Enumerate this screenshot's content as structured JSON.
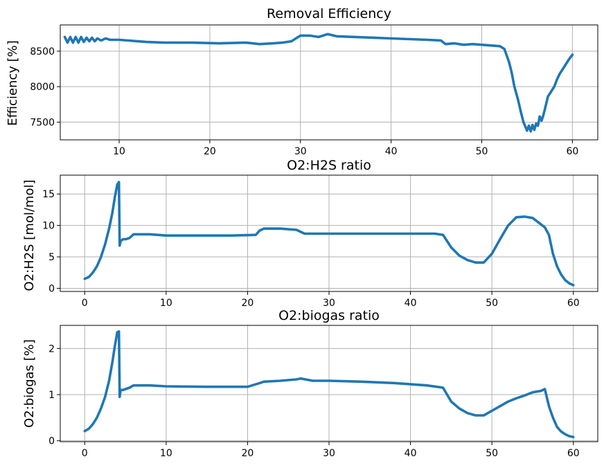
{
  "colors": {
    "series": "#1f77b4",
    "grid": "#b0b0b0"
  },
  "chart_data": [
    {
      "type": "line",
      "title": "Removal Efficiency",
      "xlabel": "",
      "ylabel": "Efficiency [%]",
      "xlim": [
        3.5,
        62.8
      ],
      "ylim": [
        7250,
        8870
      ],
      "xticks": [
        10,
        20,
        30,
        40,
        50,
        60
      ],
      "yticks": [
        7500,
        8000,
        8500
      ],
      "grid": true,
      "series": [
        {
          "x": [
            4.0,
            4.3,
            4.6,
            4.9,
            5.2,
            5.5,
            5.8,
            6.1,
            6.4,
            6.7,
            7.0,
            7.3,
            7.6,
            8.0,
            8.5,
            9.0,
            10.0,
            11.0,
            12.0,
            13.0,
            15.0,
            18.0,
            21.0,
            24.0,
            25.5,
            27.0,
            28.0,
            29.0,
            30.0,
            31.0,
            32.0,
            33.0,
            34.0,
            36.0,
            38.0,
            40.0,
            42.0,
            44.0,
            45.5,
            46.0,
            47.0,
            48.0,
            49.0,
            50.0,
            51.0,
            52.0,
            52.5,
            53.0,
            53.3,
            53.6,
            54.0,
            54.3,
            54.6,
            55.0,
            55.2,
            55.4,
            55.6,
            55.8,
            56.0,
            56.2,
            56.4,
            56.6,
            56.8,
            57.0,
            57.3,
            57.6,
            58.0,
            58.3,
            58.6,
            59.0,
            59.3,
            59.6,
            60.0
          ],
          "y": [
            8700,
            8620,
            8700,
            8620,
            8700,
            8620,
            8700,
            8630,
            8690,
            8640,
            8690,
            8640,
            8680,
            8650,
            8680,
            8660,
            8660,
            8650,
            8640,
            8630,
            8620,
            8620,
            8610,
            8620,
            8600,
            8610,
            8620,
            8640,
            8720,
            8720,
            8700,
            8740,
            8710,
            8700,
            8690,
            8680,
            8670,
            8660,
            8650,
            8600,
            8610,
            8590,
            8600,
            8590,
            8580,
            8570,
            8530,
            8350,
            8200,
            8000,
            7820,
            7650,
            7500,
            7380,
            7450,
            7370,
            7460,
            7390,
            7480,
            7450,
            7580,
            7520,
            7600,
            7700,
            7860,
            7920,
            8000,
            8100,
            8180,
            8260,
            8320,
            8380,
            8450
          ]
        }
      ]
    },
    {
      "type": "line",
      "title": "O2:H2S ratio",
      "xlabel": "",
      "ylabel": "O2:H2S [mol/mol]",
      "xlim": [
        -3.0,
        63.0
      ],
      "ylim": [
        -0.5,
        18.0
      ],
      "xticks": [
        0,
        10,
        20,
        30,
        40,
        50,
        60
      ],
      "yticks": [
        0,
        5,
        10,
        15
      ],
      "grid": true,
      "series": [
        {
          "x": [
            0.0,
            0.5,
            1.0,
            1.5,
            2.0,
            2.5,
            3.0,
            3.4,
            3.7,
            4.0,
            4.2,
            4.3,
            4.4,
            4.7,
            5.0,
            5.5,
            6.0,
            7.0,
            8.0,
            9.0,
            10.0,
            12.0,
            15.0,
            18.0,
            21.0,
            21.5,
            22.0,
            24.0,
            26.0,
            27.0,
            28.0,
            30.0,
            33.0,
            36.0,
            40.0,
            43.0,
            44.0,
            45.0,
            46.0,
            47.0,
            48.0,
            49.0,
            50.0,
            51.0,
            52.0,
            53.0,
            54.0,
            55.0,
            56.0,
            56.5,
            57.0,
            57.5,
            58.0,
            58.5,
            59.0,
            59.5,
            60.0
          ],
          "y": [
            1.5,
            1.8,
            2.5,
            3.5,
            5.0,
            7.0,
            9.5,
            12.0,
            14.5,
            16.5,
            16.9,
            6.8,
            7.5,
            7.8,
            7.8,
            8.0,
            8.6,
            8.6,
            8.6,
            8.5,
            8.4,
            8.4,
            8.4,
            8.4,
            8.5,
            9.2,
            9.5,
            9.5,
            9.3,
            8.7,
            8.7,
            8.7,
            8.7,
            8.7,
            8.7,
            8.7,
            8.5,
            6.5,
            5.2,
            4.5,
            4.1,
            4.1,
            5.5,
            7.8,
            10.0,
            11.3,
            11.4,
            11.2,
            10.2,
            9.7,
            8.5,
            5.5,
            3.5,
            2.2,
            1.3,
            0.8,
            0.5
          ]
        }
      ]
    },
    {
      "type": "line",
      "title": "O2:biogas ratio",
      "xlabel": "",
      "ylabel": "O2:biogas [%]",
      "xlim": [
        -3.0,
        63.0
      ],
      "ylim": [
        -0.02,
        2.5
      ],
      "xticks": [
        0,
        10,
        20,
        30,
        40,
        50,
        60
      ],
      "yticks": [
        0,
        1,
        2
      ],
      "grid": true,
      "series": [
        {
          "x": [
            0.0,
            0.5,
            1.0,
            1.5,
            2.0,
            2.5,
            3.0,
            3.4,
            3.7,
            4.0,
            4.2,
            4.3,
            4.4,
            4.7,
            5.0,
            5.5,
            6.0,
            8.0,
            10.0,
            15.0,
            20.0,
            21.5,
            22.0,
            24.0,
            26.0,
            26.5,
            28.0,
            30.0,
            34.0,
            38.0,
            42.0,
            44.0,
            45.0,
            46.0,
            47.0,
            48.0,
            49.0,
            50.0,
            51.0,
            52.0,
            53.0,
            54.0,
            55.0,
            56.0,
            56.5,
            57.0,
            57.5,
            58.0,
            58.5,
            59.0,
            59.5,
            60.0
          ],
          "y": [
            0.21,
            0.26,
            0.36,
            0.5,
            0.7,
            0.95,
            1.3,
            1.7,
            2.05,
            2.35,
            2.37,
            0.95,
            1.1,
            1.1,
            1.12,
            1.15,
            1.2,
            1.2,
            1.18,
            1.17,
            1.17,
            1.25,
            1.28,
            1.3,
            1.33,
            1.35,
            1.3,
            1.3,
            1.28,
            1.25,
            1.2,
            1.15,
            0.85,
            0.7,
            0.6,
            0.55,
            0.55,
            0.65,
            0.75,
            0.85,
            0.92,
            0.98,
            1.05,
            1.08,
            1.12,
            0.75,
            0.5,
            0.3,
            0.2,
            0.14,
            0.1,
            0.08
          ]
        }
      ]
    }
  ]
}
